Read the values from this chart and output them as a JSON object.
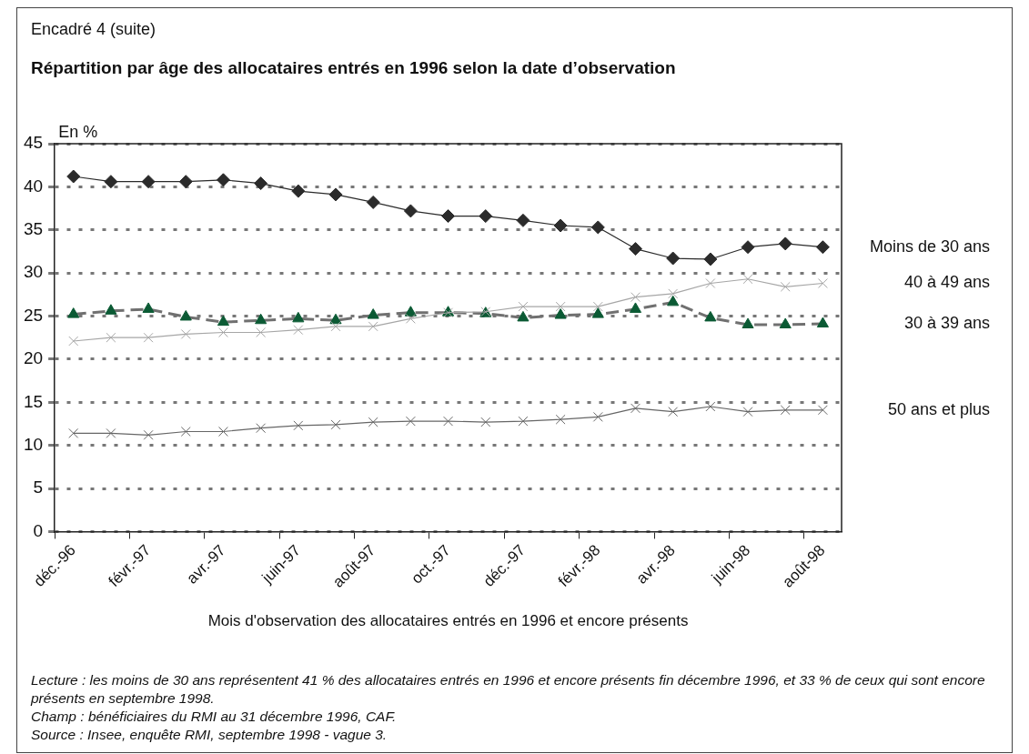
{
  "chart_data": {
    "type": "line",
    "subtitle": "Encadré 4 (suite)",
    "title": "Répartition par âge des allocataires entrés en 1996 selon la date d’observation",
    "ylabel": "En %",
    "xlabel": "Mois d'observation des allocataires entrés en 1996 et encore présents",
    "categories": [
      "déc.-96",
      null,
      "févr.-97",
      null,
      "avr.-97",
      null,
      "juin-97",
      null,
      "août-97",
      null,
      "oct.-97",
      null,
      "déc.-97",
      null,
      "févr.-98",
      null,
      "avr.-98",
      null,
      "juin-98",
      null,
      "août-98"
    ],
    "series": [
      {
        "name": "Moins de 30 ans",
        "color": "#2b2b2b",
        "marker": "diamond",
        "line_style": "solid",
        "values": [
          41.2,
          40.6,
          40.6,
          40.6,
          40.8,
          40.4,
          39.5,
          39.1,
          38.2,
          37.2,
          36.6,
          36.6,
          36.1,
          35.5,
          35.3,
          32.8,
          31.7,
          31.6,
          33.0,
          33.4,
          33.0
        ]
      },
      {
        "name": "40 à 49 ans",
        "color": "#a6a6a6",
        "marker": "cross",
        "line_style": "solid",
        "values": [
          22.1,
          22.5,
          22.5,
          22.9,
          23.1,
          23.1,
          23.4,
          23.8,
          23.8,
          24.7,
          25.4,
          25.5,
          26.1,
          26.1,
          26.1,
          27.2,
          27.6,
          28.8,
          29.3,
          28.4,
          28.8
        ]
      },
      {
        "name": "30 à 39 ans",
        "color": "#0b5a34",
        "marker": "triangle",
        "line_style": "dashed",
        "values": [
          25.2,
          25.6,
          25.8,
          24.9,
          24.3,
          24.5,
          24.7,
          24.5,
          25.1,
          25.4,
          25.4,
          25.3,
          24.8,
          25.1,
          25.2,
          25.8,
          26.6,
          24.8,
          24.0,
          24.0,
          24.1
        ]
      },
      {
        "name": "50 ans et plus",
        "color": "#666666",
        "marker": "cross",
        "line_style": "solid",
        "values": [
          11.4,
          11.4,
          11.2,
          11.6,
          11.6,
          12.0,
          12.3,
          12.4,
          12.7,
          12.8,
          12.8,
          12.7,
          12.8,
          13.0,
          13.3,
          14.3,
          13.9,
          14.5,
          13.9,
          14.1,
          14.1
        ]
      }
    ],
    "ylim": [
      0,
      45
    ],
    "yticks": [
      0,
      5,
      10,
      15,
      20,
      25,
      30,
      35,
      40,
      45
    ],
    "grid": "y",
    "legend": false,
    "annotations": [
      "Lecture : les moins de 30 ans représentent 41 % des allocataires entrés en 1996 et encore présents fin décembre 1996, et 33 % de ceux qui sont encore présents en septembre 1998.",
      "Champ : bénéficiaires du RMI au 31 décembre 1996, CAF.",
      "Source : Insee, enquête RMI, septembre 1998 - vague 3."
    ]
  }
}
